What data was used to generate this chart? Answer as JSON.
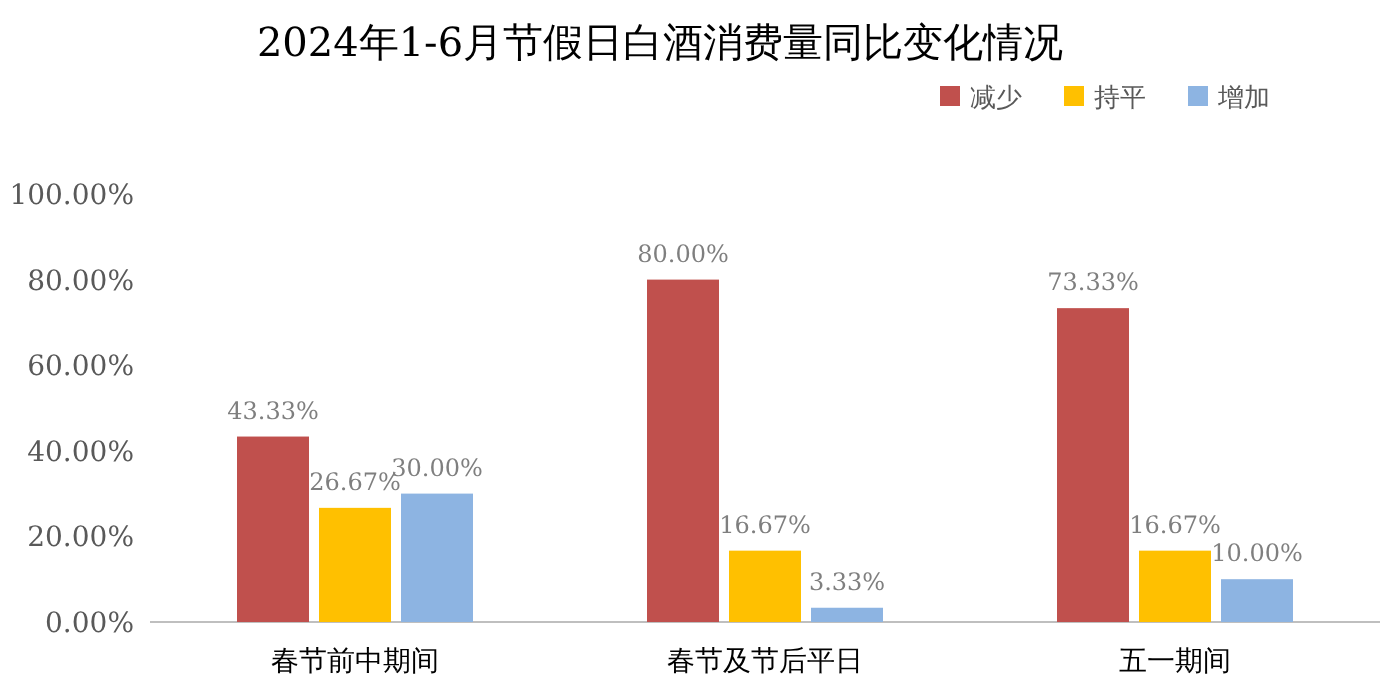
{
  "chart_data": {
    "type": "bar",
    "title": "2024年1-6月节假日白酒消费量同比变化情况",
    "categories": [
      "春节前中期间",
      "春节及节后平日",
      "五一期间"
    ],
    "series": [
      {
        "name": "减少",
        "color": "#c0504d",
        "values": [
          43.33,
          80,
          73.33
        ],
        "value_labels": [
          "43.33%",
          "80.00%",
          "73.33%"
        ]
      },
      {
        "name": "持平",
        "color": "#ffc000",
        "values": [
          26.67,
          16.67,
          16.67
        ],
        "value_labels": [
          "26.67%",
          "16.67%",
          "16.67%"
        ]
      },
      {
        "name": "增加",
        "color": "#8db4e2",
        "values": [
          30,
          3.33,
          10
        ],
        "value_labels": [
          "30.00%",
          "3.33%",
          "10.00%"
        ]
      }
    ],
    "ylim": [
      0,
      100
    ],
    "yticks": [
      {
        "value": 0,
        "label": "0.00%"
      },
      {
        "value": 20,
        "label": "20.00%"
      },
      {
        "value": 40,
        "label": "40.00%"
      },
      {
        "value": 60,
        "label": "60.00%"
      },
      {
        "value": 80,
        "label": "80.00%"
      },
      {
        "value": 100,
        "label": "100.00%"
      }
    ],
    "grid": false,
    "legend": "top right"
  }
}
